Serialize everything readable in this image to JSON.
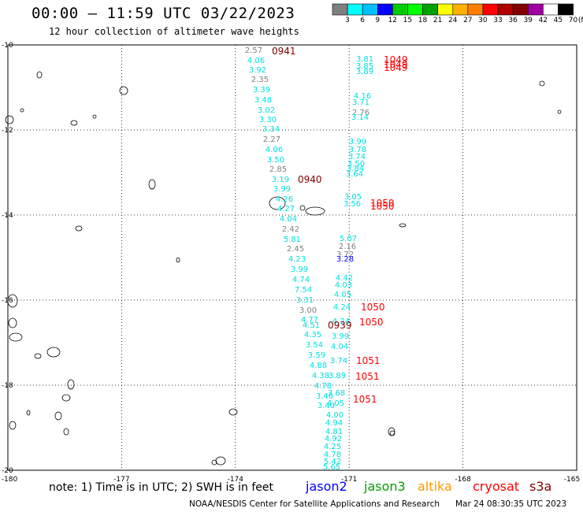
{
  "header": {
    "title": "00:00 – 11:59 UTC 03/22/2023",
    "subtitle": "12 hour collection of altimeter wave heights"
  },
  "colorbar": {
    "colors": [
      "#808080",
      "#00ffff",
      "#00bfff",
      "#0000ff",
      "#00cc00",
      "#00ff00",
      "#00a000",
      "#ffff00",
      "#ffb000",
      "#ff7f00",
      "#ff0000",
      "#b00000",
      "#800000",
      "#a000a0",
      "#ffffff",
      "#000000"
    ],
    "labels": [
      "3",
      "6",
      "9",
      "12",
      "15",
      "18",
      "21",
      "24",
      "27",
      "30",
      "33",
      "36",
      "39",
      "42",
      "45",
      "70"
    ],
    "unit": "(ft)"
  },
  "map": {
    "lon_range": [
      -180,
      -165
    ],
    "lat_range": [
      -20,
      -10
    ],
    "lon_tick_labels": [
      "-180",
      "-177",
      "-174",
      "-171",
      "-168",
      "-165"
    ],
    "lat_tick_labels": [
      "-10",
      "-12",
      "-14",
      "-16",
      "-18",
      "-20"
    ],
    "grid": "dotted"
  },
  "observations": [
    {
      "v": "2.57",
      "c": "#808080"
    },
    {
      "v": "4.06",
      "c": "#00e0e0"
    },
    {
      "v": "3.92",
      "c": "#00e0e0"
    },
    {
      "v": "2.35",
      "c": "#808080"
    },
    {
      "v": "3.39",
      "c": "#00e0e0"
    },
    {
      "v": "3.48",
      "c": "#00e0e0"
    },
    {
      "v": "3.02",
      "c": "#00e0e0"
    },
    {
      "v": "3.30",
      "c": "#00e0e0"
    },
    {
      "v": "3.34",
      "c": "#00e0e0"
    },
    {
      "v": "2.27",
      "c": "#808080"
    },
    {
      "v": "4.06",
      "c": "#00e0e0"
    },
    {
      "v": "3.50",
      "c": "#00e0e0"
    },
    {
      "v": "2.85",
      "c": "#808080"
    },
    {
      "v": "3.19",
      "c": "#00e0e0"
    },
    {
      "v": "3.99",
      "c": "#00e0e0"
    },
    {
      "v": "4.26",
      "c": "#00e0e0"
    },
    {
      "v": "4.27",
      "c": "#00e0e0"
    },
    {
      "v": "4.04",
      "c": "#00e0e0"
    },
    {
      "v": "2.42",
      "c": "#808080"
    },
    {
      "v": "5.81",
      "c": "#00e0e0"
    },
    {
      "v": "2.45",
      "c": "#808080"
    },
    {
      "v": "4.23",
      "c": "#00e0e0"
    },
    {
      "v": "3.99",
      "c": "#00e0e0"
    },
    {
      "v": "4.74",
      "c": "#00e0e0"
    },
    {
      "v": "7.54",
      "c": "#00e0e0"
    },
    {
      "v": "3.31",
      "c": "#00e0e0"
    },
    {
      "v": "3.00",
      "c": "#808080"
    },
    {
      "v": "4.77",
      "c": "#00e0e0"
    },
    {
      "v": "4.51",
      "c": "#00e0e0"
    },
    {
      "v": "4.35",
      "c": "#00e0e0"
    },
    {
      "v": "3.54",
      "c": "#00e0e0"
    },
    {
      "v": "3.59",
      "c": "#00e0e0"
    },
    {
      "v": "4.88",
      "c": "#00e0e0"
    },
    {
      "v": "4.38",
      "c": "#00e0e0"
    },
    {
      "v": "4.78",
      "c": "#00e0e0"
    },
    {
      "v": "3.46",
      "c": "#00e0e0"
    },
    {
      "v": "3.40",
      "c": "#00e0e0"
    },
    {
      "v": "3.81",
      "c": "#00e0e0"
    },
    {
      "v": "3.85",
      "c": "#00e0e0"
    },
    {
      "v": "3.89",
      "c": "#00e0e0"
    },
    {
      "v": "4.16",
      "c": "#00e0e0"
    },
    {
      "v": "3.71",
      "c": "#00e0e0"
    },
    {
      "v": "2.76",
      "c": "#808080"
    },
    {
      "v": "3.14",
      "c": "#00e0e0"
    },
    {
      "v": "3.99",
      "c": "#00e0e0"
    },
    {
      "v": "3.78",
      "c": "#00e0e0"
    },
    {
      "v": "3.74",
      "c": "#00e0e0"
    },
    {
      "v": "3.50",
      "c": "#00e0e0"
    },
    {
      "v": "3.84",
      "c": "#00e0e0"
    },
    {
      "v": "3.64",
      "c": "#00e0e0"
    },
    {
      "v": "3.05",
      "c": "#00e0e0"
    },
    {
      "v": "3.56",
      "c": "#00e0e0"
    },
    {
      "v": "5.07",
      "c": "#00e0e0"
    },
    {
      "v": "2.16",
      "c": "#808080"
    },
    {
      "v": "3.72",
      "c": "#808080"
    },
    {
      "v": "3.28",
      "c": "#0000ff"
    },
    {
      "v": "4.42",
      "c": "#00e0e0"
    },
    {
      "v": "4.03",
      "c": "#00e0e0"
    },
    {
      "v": "4.05",
      "c": "#00e0e0"
    },
    {
      "v": "4.24",
      "c": "#00e0e0"
    },
    {
      "v": "4.24",
      "c": "#00e0e0"
    },
    {
      "v": "3.99",
      "c": "#00e0e0"
    },
    {
      "v": "4.04",
      "c": "#00e0e0"
    },
    {
      "v": "3.74",
      "c": "#00e0e0"
    },
    {
      "v": "3.89",
      "c": "#00e0e0"
    },
    {
      "v": "3.68",
      "c": "#00e0e0"
    },
    {
      "v": "4.05",
      "c": "#00e0e0"
    },
    {
      "v": "4.00",
      "c": "#00e0e0"
    },
    {
      "v": "4.94",
      "c": "#00e0e0"
    },
    {
      "v": "4.81",
      "c": "#00e0e0"
    },
    {
      "v": "4.92",
      "c": "#00e0e0"
    },
    {
      "v": "4.25",
      "c": "#00e0e0"
    },
    {
      "v": "4.78",
      "c": "#00e0e0"
    },
    {
      "v": "5.42",
      "c": "#00e0e0"
    },
    {
      "v": "5.65",
      "c": "#00e0e0"
    },
    {
      "v": "5.51",
      "c": "#00e0e0"
    },
    {
      "v": "5.65",
      "c": "#00e0e0"
    },
    {
      "v": "4.77",
      "c": "#00e0e0"
    }
  ],
  "time_labels": [
    {
      "t": "0941",
      "c": "#800000"
    },
    {
      "t": "0940",
      "c": "#800000"
    },
    {
      "t": "0939",
      "c": "#800000"
    },
    {
      "t": "1049",
      "c": "#ff0000"
    },
    {
      "t": "1049",
      "c": "#ff0000"
    },
    {
      "t": "1049",
      "c": "#ff0000"
    },
    {
      "t": "1050",
      "c": "#ff0000"
    },
    {
      "t": "1050",
      "c": "#ff0000"
    },
    {
      "t": "1050",
      "c": "#ff0000"
    },
    {
      "t": "1050",
      "c": "#ff0000"
    },
    {
      "t": "1051",
      "c": "#ff0000"
    },
    {
      "t": "1051",
      "c": "#ff0000"
    },
    {
      "t": "1051",
      "c": "#ff0000"
    }
  ],
  "footer": {
    "note": "note:  1) Time is in UTC;  2) SWH is in feet",
    "satellites": [
      {
        "name": "jason2",
        "color": "#0000ff"
      },
      {
        "name": "jason3",
        "color": "#00a000"
      },
      {
        "name": "altika",
        "color": "#ff9900"
      },
      {
        "name": "cryosat",
        "color": "#ff0000"
      },
      {
        "name": "s3a",
        "color": "#800000"
      }
    ],
    "credit": "NOAA/NESDIS Center for Satellite Applications and Research",
    "timestamp": "Mar 24 08:30:35 UTC 2023"
  }
}
